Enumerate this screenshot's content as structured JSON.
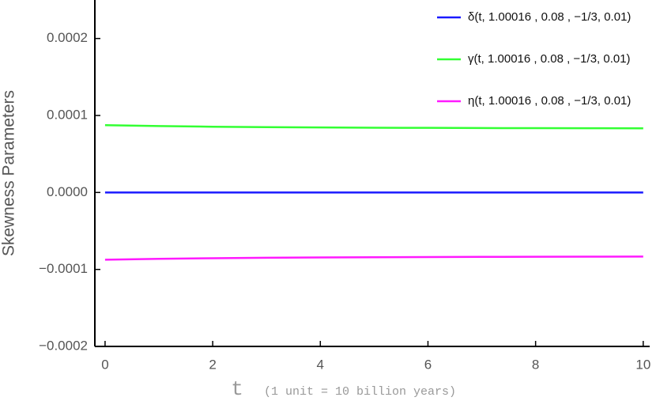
{
  "chart_data": {
    "type": "line",
    "ylabel": "Skewness Parameters",
    "xlabel": "t",
    "xlabel_note": "(1 unit = 10  billion years)",
    "x": [
      0,
      1,
      2,
      3,
      4,
      5,
      6,
      7,
      8,
      9,
      10
    ],
    "series": [
      {
        "name": "δ(t, 1.00016 , 0.08 , −1/3, 0.01)",
        "color": "#1a1aff",
        "values": [
          0,
          0,
          0,
          0,
          0,
          0,
          0,
          0,
          0,
          0,
          0
        ]
      },
      {
        "name": "γ(t, 1.00016 , 0.08 , −1/3, 0.01)",
        "color": "#33ff33",
        "values": [
          8.74e-05,
          8.62e-05,
          8.54e-05,
          8.48e-05,
          8.44e-05,
          8.41e-05,
          8.39e-05,
          8.37e-05,
          8.35e-05,
          8.34e-05,
          8.33e-05
        ]
      },
      {
        "name": "η(t, 1.00016 , 0.08 , −1/3, 0.01)",
        "color": "#ff1aff",
        "values": [
          -8.74e-05,
          -8.62e-05,
          -8.54e-05,
          -8.48e-05,
          -8.44e-05,
          -8.41e-05,
          -8.39e-05,
          -8.37e-05,
          -8.35e-05,
          -8.34e-05,
          -8.33e-05
        ]
      }
    ],
    "xlim": [
      -0.19,
      10.12
    ],
    "ylim": [
      -0.0002,
      0.00025
    ],
    "xticks": [
      0,
      2,
      4,
      6,
      8,
      10
    ],
    "yticks": [
      {
        "value": -0.0002,
        "label": "−0.0002"
      },
      {
        "value": -0.0001,
        "label": "−0.0001"
      },
      {
        "value": 0,
        "label": "0.0000"
      },
      {
        "value": 0.0001,
        "label": "0.0001"
      },
      {
        "value": 0.0002,
        "label": "0.0002"
      }
    ],
    "legend": "top-right"
  }
}
